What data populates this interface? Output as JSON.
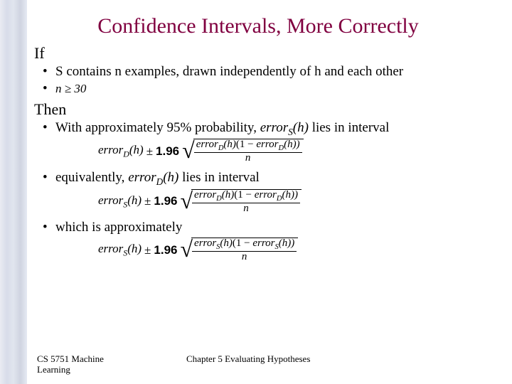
{
  "title": "Confidence Intervals, More Correctly",
  "sections": {
    "if": "If",
    "then": "Then"
  },
  "bullets": {
    "b1": "S contains n examples, drawn independently of h and each other",
    "b2_math": "n ≥ 30",
    "b3_pre": "With approximately 95% probability, ",
    "b3_err": "error",
    "b3_sub": "S",
    "b3_arg": "(h)",
    "b3_post": " lies in interval",
    "b4_pre": "equivalently, ",
    "b4_err": "error",
    "b4_sub": "D",
    "b4_arg": "(h)",
    "b4_post": " lies in interval",
    "b5": "which is approximately"
  },
  "formula": {
    "f1_left_err": "error",
    "f1_left_sub": "D",
    "f1_left_arg": "(h)",
    "pm": "±",
    "const": "1.96",
    "f1_num_a": "error",
    "f1_num_a_sub": "D",
    "f1_num_a_arg": "(h)",
    "f1_num_b_open": "(1 − ",
    "f1_num_b": "error",
    "f1_num_b_sub": "D",
    "f1_num_b_arg": "(h))",
    "den": "n",
    "f2_left_err": "error",
    "f2_left_sub": "S",
    "f2_left_arg": "(h)",
    "f2_num_a": "error",
    "f2_num_a_sub": "D",
    "f2_num_a_arg": "(h)",
    "f2_num_b": "error",
    "f2_num_b_sub": "D",
    "f2_num_b_arg": "(h))",
    "f3_left_err": "error",
    "f3_left_sub": "S",
    "f3_left_arg": "(h)",
    "f3_num_a": "error",
    "f3_num_a_sub": "S",
    "f3_num_a_arg": "(h)",
    "f3_num_b": "error",
    "f3_num_b_sub": "S",
    "f3_num_b_arg": "(h))"
  },
  "footer": {
    "left_line1": "CS 5751 Machine",
    "left_line2": "Learning",
    "center": "Chapter 5  Evaluating Hypotheses"
  },
  "colors": {
    "title": "#800040",
    "text": "#000000",
    "background": "#ffffff"
  }
}
